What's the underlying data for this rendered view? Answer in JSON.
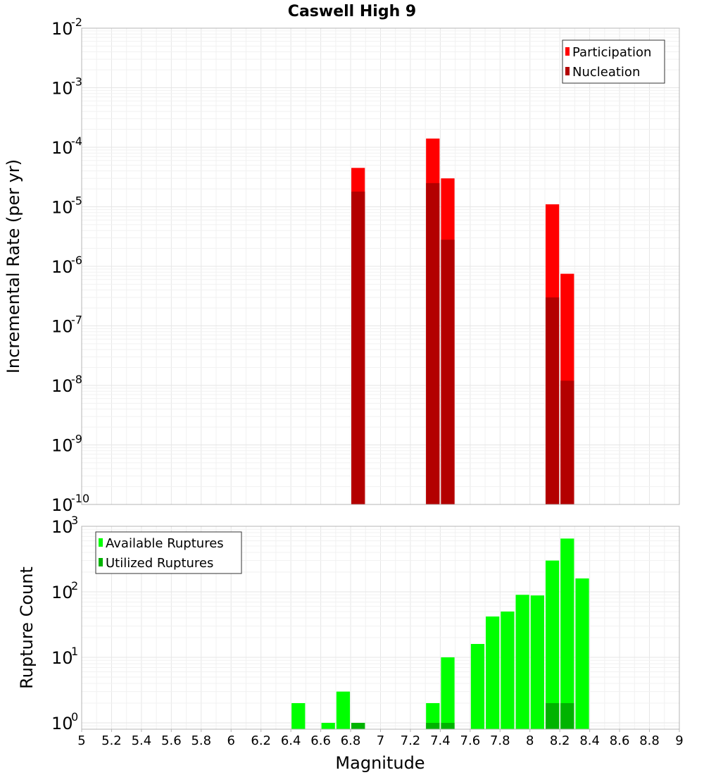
{
  "chart_data": [
    {
      "type": "bar",
      "title": "Caswell High 9",
      "xlabel": "",
      "ylabel": "Incremental Rate (per yr)",
      "yscale": "log",
      "ylim": [
        1e-10,
        0.01
      ],
      "xlim": [
        5,
        9
      ],
      "grid": true,
      "legend_position": "top-right",
      "x": [
        6.85,
        7.35,
        7.45,
        8.15,
        8.25
      ],
      "series": [
        {
          "name": "Participation",
          "color": "#ff0000",
          "values": [
            4.5e-05,
            0.00014,
            3e-05,
            1.1e-05,
            7.5e-07
          ]
        },
        {
          "name": "Nucleation",
          "color": "#b30000",
          "values": [
            1.8e-05,
            2.5e-05,
            2.8e-06,
            3e-07,
            1.2e-08
          ]
        }
      ]
    },
    {
      "type": "bar",
      "title": "",
      "xlabel": "Magnitude",
      "ylabel": "Rupture Count",
      "yscale": "log",
      "ylim": [
        0.8,
        1000
      ],
      "xlim": [
        5,
        9
      ],
      "grid": true,
      "legend_position": "top-left",
      "x": [
        6.45,
        6.65,
        6.75,
        6.85,
        7.35,
        7.45,
        7.65,
        7.75,
        7.85,
        7.95,
        8.05,
        8.15,
        8.25,
        8.35
      ],
      "series": [
        {
          "name": "Available Ruptures",
          "color": "#00ff00",
          "values": [
            2,
            1,
            3,
            1,
            2,
            10,
            16,
            42,
            50,
            90,
            88,
            300,
            650,
            160
          ]
        },
        {
          "name": "Utilized Ruptures",
          "color": "#00b300",
          "values": [
            null,
            null,
            null,
            1,
            1,
            1,
            null,
            null,
            null,
            null,
            null,
            2,
            2,
            null
          ]
        }
      ]
    }
  ],
  "x_ticks": [
    "5",
    "5.2",
    "5.4",
    "5.6",
    "5.8",
    "6",
    "6.2",
    "6.4",
    "6.6",
    "6.8",
    "7",
    "7.2",
    "7.4",
    "7.6",
    "7.8",
    "8",
    "8.2",
    "8.4",
    "8.6",
    "8.8",
    "9"
  ],
  "top_y_ticks": [
    {
      "base": "10",
      "exp": "-2"
    },
    {
      "base": "10",
      "exp": "-3"
    },
    {
      "base": "10",
      "exp": "-4"
    },
    {
      "base": "10",
      "exp": "-5"
    },
    {
      "base": "10",
      "exp": "-6"
    },
    {
      "base": "10",
      "exp": "-7"
    },
    {
      "base": "10",
      "exp": "-8"
    },
    {
      "base": "10",
      "exp": "-9"
    },
    {
      "base": "10",
      "exp": "-10"
    }
  ],
  "bottom_y_ticks": [
    {
      "base": "10",
      "exp": "3"
    },
    {
      "base": "10",
      "exp": "2"
    },
    {
      "base": "10",
      "exp": "1"
    },
    {
      "base": "10",
      "exp": "0"
    }
  ]
}
